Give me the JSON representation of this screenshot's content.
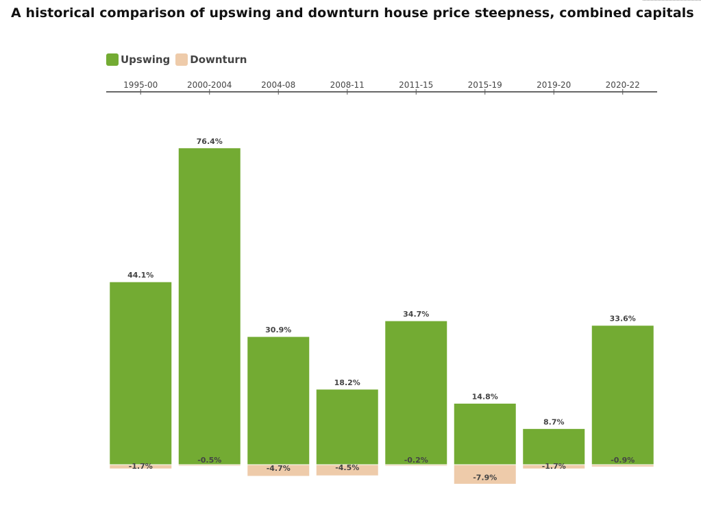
{
  "title": "A historical comparison of upswing and downturn house price steepness, combined capitals",
  "legend": {
    "upswing": "Upswing",
    "downturn": "Downturn"
  },
  "colors": {
    "upswing": "#73ab33",
    "downturn": "#eecbaa"
  },
  "chart_data": {
    "type": "bar",
    "title": "A historical comparison of upswing and downturn house price steepness, combined capitals",
    "categories": [
      "1995-00",
      "2000-2004",
      "2004-08",
      "2008-11",
      "2011-15",
      "2015-19",
      "2019-20",
      "2020-22"
    ],
    "series": [
      {
        "name": "Upswing",
        "values": [
          44.1,
          76.4,
          30.9,
          18.2,
          34.7,
          14.8,
          8.7,
          33.6
        ],
        "labels": [
          "44.1%",
          "76.4%",
          "30.9%",
          "18.2%",
          "34.7%",
          "14.8%",
          "8.7%",
          "33.6%"
        ]
      },
      {
        "name": "Downturn",
        "values": [
          -1.7,
          -0.5,
          -4.7,
          -4.5,
          -0.2,
          -7.9,
          -1.7,
          -0.9
        ],
        "labels": [
          "-1.7%",
          "-0.5%",
          "-4.7%",
          "-4.5%",
          "-0.2%",
          "-7.9%",
          "-1.7%",
          "-0.9%"
        ]
      }
    ],
    "xaxis_position": "top",
    "legend_position": "top-left",
    "ylim": [
      -8,
      80
    ],
    "grid": false
  }
}
